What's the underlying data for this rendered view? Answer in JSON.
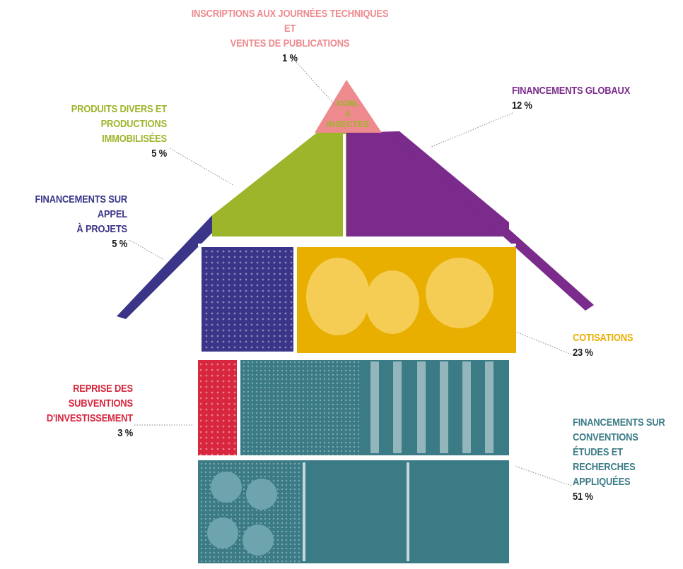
{
  "chart_data": {
    "type": "pie",
    "slices": [
      {
        "key": "inscriptions",
        "label": "INSCRIPTIONS AUX JOURNÉES TECHNIQUES ET",
        "label2": "VENTES DE PUBLICATIONS",
        "value_label": "1 %",
        "value": 1,
        "color": "#ee8a8e"
      },
      {
        "key": "globaux",
        "label": "FINANCEMENTS GLOBAUX",
        "value_label": "12 %",
        "value": 12,
        "color": "#7a2b8b"
      },
      {
        "key": "produits",
        "label": "PRODUITS DIVERS ET PRODUCTIONS",
        "label2": "IMMOBILISÉES",
        "value_label": "5 %",
        "value": 5,
        "color": "#9cb52a"
      },
      {
        "key": "appel",
        "label": "FINANCEMENTS SUR APPEL",
        "label2": "À PROJETS",
        "value_label": "5 %",
        "value": 5,
        "color": "#3a3588"
      },
      {
        "key": "cotisations",
        "label": "COTISATIONS",
        "value_label": "23 %",
        "value": 23,
        "color": "#e8ae00"
      },
      {
        "key": "reprise",
        "label": "REPRISE DES SUBVENTIONS",
        "label2": "D'INVESTISSEMENT",
        "value_label": "3 %",
        "value": 3,
        "color": "#d7263d"
      },
      {
        "key": "conventions",
        "label": "FINANCEMENTS SUR",
        "label2": "CONVENTIONS",
        "label3": "ÉTUDES ET RECHERCHES",
        "label4": "APPLIQUÉES",
        "value_label": "51 %",
        "value": 51,
        "color": "#3b7b86"
      }
    ],
    "logo_text": [
      "NOBL",
      "À",
      "INSECTES"
    ]
  }
}
